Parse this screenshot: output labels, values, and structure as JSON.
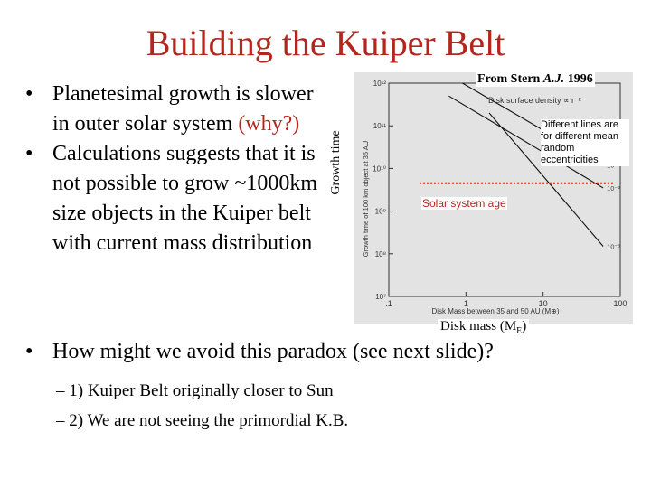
{
  "slide": {
    "title": "Building the Kuiper Belt",
    "bullet1": {
      "text": "Planetesimal growth is slower in outer solar system ",
      "highlight": "(why?)"
    },
    "bullet2": "Calculations suggests that it is not possible to grow ~1000km size objects in the Kuiper belt with current mass distribution",
    "bullet3": "How might we avoid this paradox (see next slide)?",
    "sub1": "1) Kuiper Belt originally closer to Sun",
    "sub2": "2) We are not seeing the primordial K.B.",
    "bullet_marker": "•",
    "dash_marker": "–"
  },
  "figure": {
    "source_prefix": "From Stern ",
    "source_journal": "A.J.",
    "source_year": " 1996",
    "y_annotation": "Growth time",
    "x_annotation_main": "Disk mass (M",
    "x_annotation_sub": "E",
    "x_annotation_end": ")",
    "note": "Different lines are for different mean random eccentricities",
    "solar_label": "Solar system age",
    "inner_title": "Disk surface density ∝ r⁻²",
    "inner_ylabel": "Growth time of 100 km object at 35 AU",
    "inner_xlabel": "Disk Mass between 35 and 50 AU (M⊕)",
    "x_ticks": [
      ".1",
      "1",
      "10",
      "100"
    ],
    "y_ticks": [
      "10¹²",
      "10¹¹",
      "10¹⁰",
      "10⁹",
      "10⁸",
      "10⁷"
    ],
    "line_labels": [
      "10⁻¹",
      "10⁻²",
      "10⁻³"
    ],
    "colors": {
      "title": "#b3261e",
      "solar_line": "#cc2200",
      "figure_bg": "#e3e3e3"
    }
  },
  "chart_data": {
    "type": "line",
    "title": "Disk surface density ∝ r⁻²",
    "xlabel": "Disk Mass between 35 and 50 AU (M⊕)",
    "ylabel": "Growth time of 100 km object at 35 AU",
    "x_scale": "log",
    "y_scale": "log",
    "xlim": [
      0.1,
      100
    ],
    "ylim": [
      10000000.0,
      1000000000000.0
    ],
    "series": [
      {
        "name": "10⁻¹",
        "x": [
          0.9,
          60
        ],
        "y": [
          1000000000000.0,
          12000000000.0
        ]
      },
      {
        "name": "10⁻²",
        "x": [
          0.6,
          60
        ],
        "y": [
          500000000000.0,
          3500000000.0
        ]
      },
      {
        "name": "10⁻³",
        "x": [
          2,
          60
        ],
        "y": [
          200000000000.0,
          150000000.0
        ]
      }
    ],
    "reference_line": {
      "label": "Solar system age",
      "y": 4500000000.0
    }
  }
}
